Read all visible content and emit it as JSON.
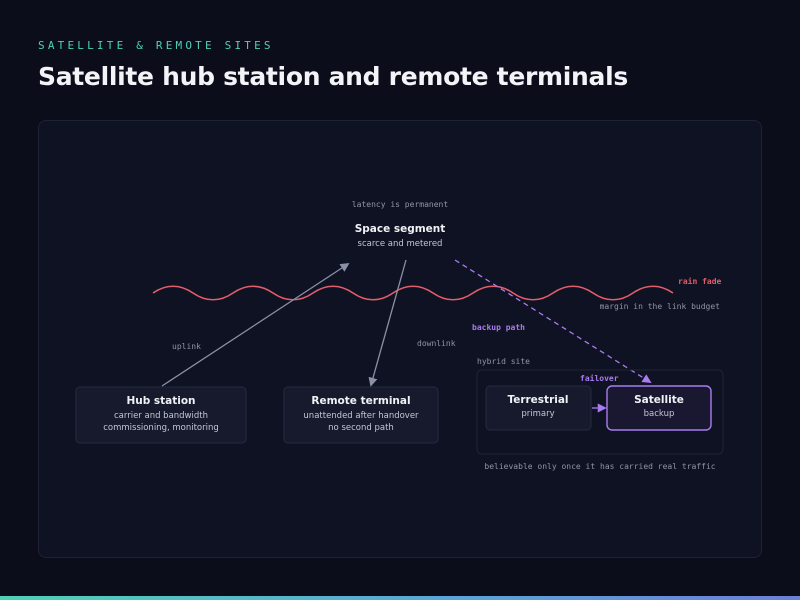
{
  "eyebrow": "SATELLITE & REMOTE SITES",
  "title": "Satellite hub station and remote terminals",
  "space_segment": {
    "note": "latency is permanent",
    "title": "Space segment",
    "subtitle": "scarce and metered"
  },
  "rain_fade": {
    "label": "rain fade",
    "note": "margin in the link budget"
  },
  "links": {
    "uplink": "uplink",
    "downlink": "downlink",
    "backup_path": "backup path",
    "failover": "failover"
  },
  "hub": {
    "title": "Hub station",
    "line1": "carrier and bandwidth",
    "line2": "commissioning, monitoring"
  },
  "remote": {
    "title": "Remote terminal",
    "line1": "unattended after handover",
    "line2": "no second path"
  },
  "hybrid": {
    "label": "hybrid site",
    "terrestrial": {
      "title": "Terrestrial",
      "subtitle": "primary"
    },
    "satellite": {
      "title": "Satellite",
      "subtitle": "backup"
    },
    "note": "believable only once it has carried real traffic"
  },
  "colors": {
    "accent_teal": "#4fd1b5",
    "rain_red": "#e35d6a",
    "backup_purple": "#a87cf0",
    "link_gray": "#8a90a6"
  }
}
